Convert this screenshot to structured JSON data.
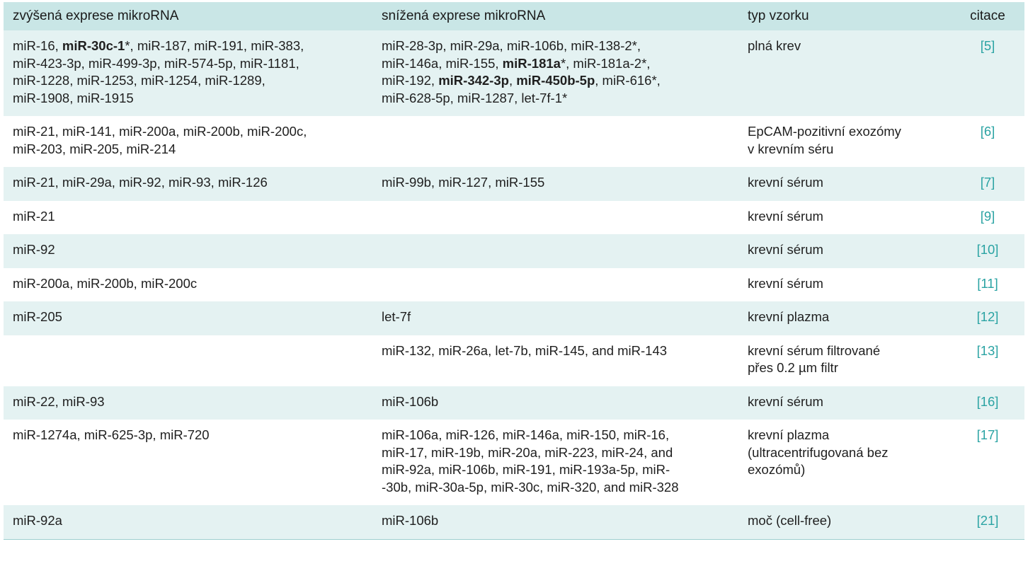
{
  "header": {
    "col1": "zvýšená exprese mikroRNA",
    "col2": "snížená exprese mikroRNA",
    "col3": "typ vzorku",
    "col4": "citace"
  },
  "rows": [
    {
      "up": [
        {
          "t": "miR-16, ",
          "b": false
        },
        {
          "t": "miR-30c-1",
          "b": true
        },
        {
          "t": "*, miR-187, miR-191, miR-383,",
          "b": false
        },
        {
          "br": true
        },
        {
          "t": "miR-423-3p, miR-499-3p, miR-574-5p, miR-1181,",
          "b": false
        },
        {
          "br": true
        },
        {
          "t": "miR-1228, miR-1253, miR-1254, miR-1289,",
          "b": false
        },
        {
          "br": true
        },
        {
          "t": "miR-1908, miR-1915",
          "b": false
        }
      ],
      "down": [
        {
          "t": "miR-28-3p, miR-29a, miR-106b, miR-138-2*,",
          "b": false
        },
        {
          "br": true
        },
        {
          "t": "miR-146a, miR-155, ",
          "b": false
        },
        {
          "t": "miR-181a",
          "b": true
        },
        {
          "t": "*, miR-181a-2*,",
          "b": false
        },
        {
          "br": true
        },
        {
          "t": "miR-192, ",
          "b": false
        },
        {
          "t": "miR-342-3p",
          "b": true
        },
        {
          "t": ", ",
          "b": false
        },
        {
          "t": "miR-450b-5p",
          "b": true
        },
        {
          "t": ", miR-616*,",
          "b": false
        },
        {
          "br": true
        },
        {
          "t": "miR-628-5p, miR-1287, let-7f-1*",
          "b": false
        }
      ],
      "sample": "plná krev",
      "cite": "[5]"
    },
    {
      "up": [
        {
          "t": "miR-21, miR-141, miR-200a, miR-200b, miR-200c,",
          "b": false
        },
        {
          "br": true
        },
        {
          "t": "miR-203, miR-205, miR-214",
          "b": false
        }
      ],
      "down": [],
      "sample": "EpCAM-pozitivní exozómy\nv krevním séru",
      "cite": "[6]"
    },
    {
      "up": [
        {
          "t": "miR-21, miR-29a, miR-92, miR-93, miR-126",
          "b": false
        }
      ],
      "down": [
        {
          "t": "miR-99b, miR-127, miR-155",
          "b": false
        }
      ],
      "sample": "krevní sérum",
      "cite": "[7]"
    },
    {
      "up": [
        {
          "t": "miR-21",
          "b": false
        }
      ],
      "down": [],
      "sample": "krevní sérum",
      "cite": "[9]"
    },
    {
      "up": [
        {
          "t": "miR-92",
          "b": false
        }
      ],
      "down": [],
      "sample": "krevní sérum",
      "cite": "[10]"
    },
    {
      "up": [
        {
          "t": "miR-200a, miR-200b, miR-200c",
          "b": false
        }
      ],
      "down": [],
      "sample": "krevní sérum",
      "cite": "[11]"
    },
    {
      "up": [
        {
          "t": "miR-205",
          "b": false
        }
      ],
      "down": [
        {
          "t": "let-7f",
          "b": false
        }
      ],
      "sample": "krevní plazma",
      "cite": "[12]"
    },
    {
      "up": [],
      "down": [
        {
          "t": "miR-132, miR-26a, let-7b, miR-145, and miR-143",
          "b": false
        }
      ],
      "sample": "krevní sérum filtrované\npřes 0.2 µm filtr",
      "cite": "[13]"
    },
    {
      "up": [
        {
          "t": "miR-22,  miR-93",
          "b": false
        }
      ],
      "down": [
        {
          "t": "miR-106b",
          "b": false
        }
      ],
      "sample": "krevní sérum",
      "cite": "[16]"
    },
    {
      "up": [
        {
          "t": "miR-1274a, miR-625-3p,  miR-720",
          "b": false
        }
      ],
      "down": [
        {
          "t": "miR-106a, miR-126, miR-146a, miR-150, miR-16,",
          "b": false
        },
        {
          "br": true
        },
        {
          "t": "miR-17, miR-19b, miR-20a, miR-223, miR-24, and",
          "b": false
        },
        {
          "br": true
        },
        {
          "t": "miR-92a, miR-106b, miR-191, miR-193a-5p, miR-",
          "b": false
        },
        {
          "br": true
        },
        {
          "t": "-30b, miR-30a-5p, miR-30c, miR-320, and miR-328",
          "b": false
        }
      ],
      "sample": "krevní plazma\n(ultracentrifugovaná bez\nexozómů)",
      "cite": "[17]"
    },
    {
      "up": [
        {
          "t": "miR-92a",
          "b": false
        }
      ],
      "down": [
        {
          "t": "miR-106b",
          "b": false
        }
      ],
      "sample": "moč (cell-free)",
      "cite": "[21]"
    }
  ],
  "colors": {
    "header_bg": "#c9e6e6",
    "row_shade": "#e4f2f2",
    "citation": "#2aa3a3"
  }
}
